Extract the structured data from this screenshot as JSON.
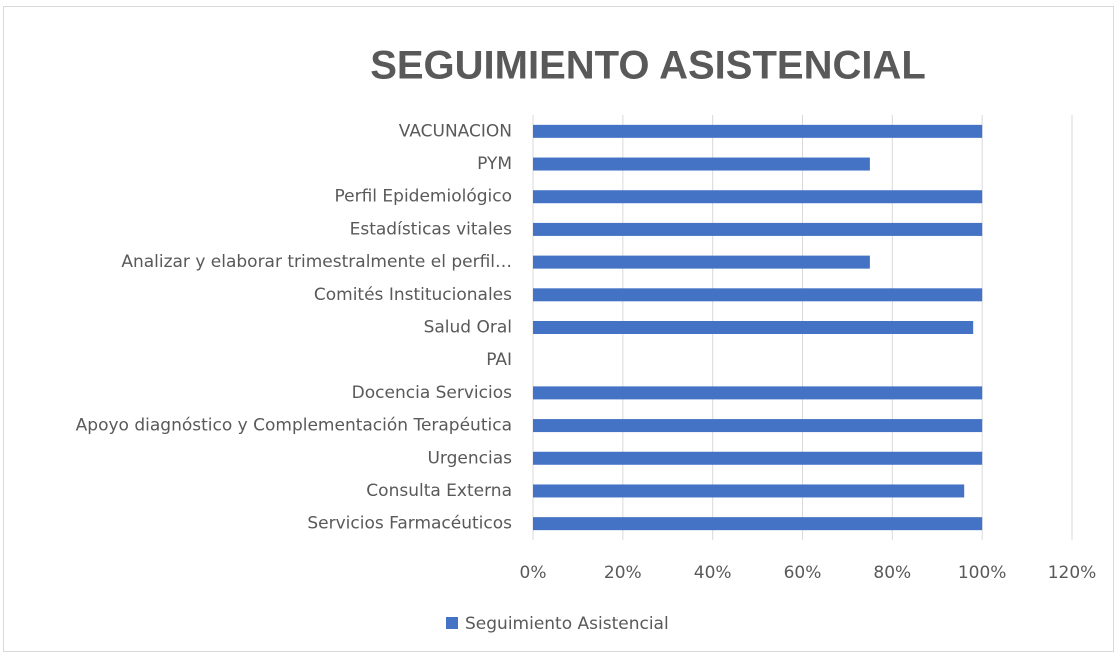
{
  "chart_data": {
    "type": "bar",
    "orientation": "horizontal",
    "title": "SEGUIMIENTO ASISTENCIAL",
    "categories": [
      "VACUNACION",
      "PYM",
      "Perfil Epidemiológico",
      "Estadísticas vitales",
      "Analizar y elaborar trimestralmente el perfil…",
      "Comités Institucionales",
      "Salud Oral",
      "PAI",
      "Docencia Servicios",
      "Apoyo diagnóstico y Complementación Terapéutica",
      "Urgencias",
      "Consulta Externa",
      "Servicios Farmacéuticos"
    ],
    "series": [
      {
        "name": "Seguimiento Asistencial",
        "color": "#4472c4",
        "values": [
          100,
          75,
          100,
          100,
          75,
          100,
          98,
          0,
          100,
          100,
          100,
          96,
          100
        ]
      }
    ],
    "xlim": [
      0,
      120
    ],
    "xticks": [
      {
        "value": 0,
        "label": "0%"
      },
      {
        "value": 20,
        "label": "20%"
      },
      {
        "value": 40,
        "label": "40%"
      },
      {
        "value": 60,
        "label": "60%"
      },
      {
        "value": 80,
        "label": "80%"
      },
      {
        "value": 100,
        "label": "100%"
      },
      {
        "value": 120,
        "label": "120%"
      }
    ],
    "grid": true,
    "legend": "bottom"
  }
}
